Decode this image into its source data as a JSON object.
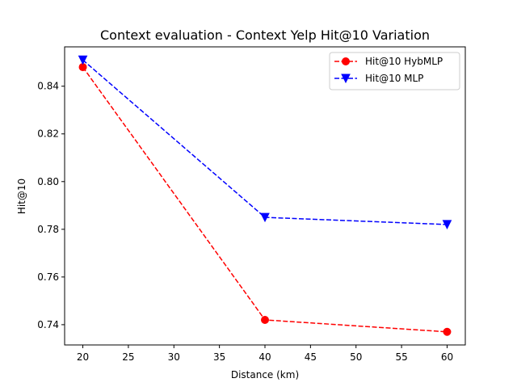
{
  "chart_data": {
    "type": "line",
    "title": "Context evaluation - Context Yelp Hit@10 Variation",
    "xlabel": "Distance (km)",
    "ylabel": "Hit@10",
    "x": [
      20,
      40,
      60
    ],
    "series": [
      {
        "name": "Hit@10 HybMLP",
        "values": [
          0.848,
          0.742,
          0.737
        ],
        "color": "#ff0000",
        "marker": "circle",
        "linestyle": "dashed"
      },
      {
        "name": "Hit@10 MLP",
        "values": [
          0.851,
          0.785,
          0.782
        ],
        "color": "#0000ff",
        "marker": "triangle-down",
        "linestyle": "dashed"
      }
    ],
    "xlim": [
      18,
      62
    ],
    "ylim": [
      0.7315,
      0.8565
    ],
    "xticks": [
      20,
      25,
      30,
      35,
      40,
      45,
      50,
      55,
      60
    ],
    "xtick_labels": [
      "20",
      "25",
      "30",
      "35",
      "40",
      "45",
      "50",
      "55",
      "60"
    ],
    "yticks": [
      0.74,
      0.76,
      0.78,
      0.8,
      0.82,
      0.84
    ],
    "ytick_labels": [
      "0.74",
      "0.76",
      "0.78",
      "0.80",
      "0.82",
      "0.84"
    ],
    "grid": false,
    "legend_position": "top-right"
  }
}
